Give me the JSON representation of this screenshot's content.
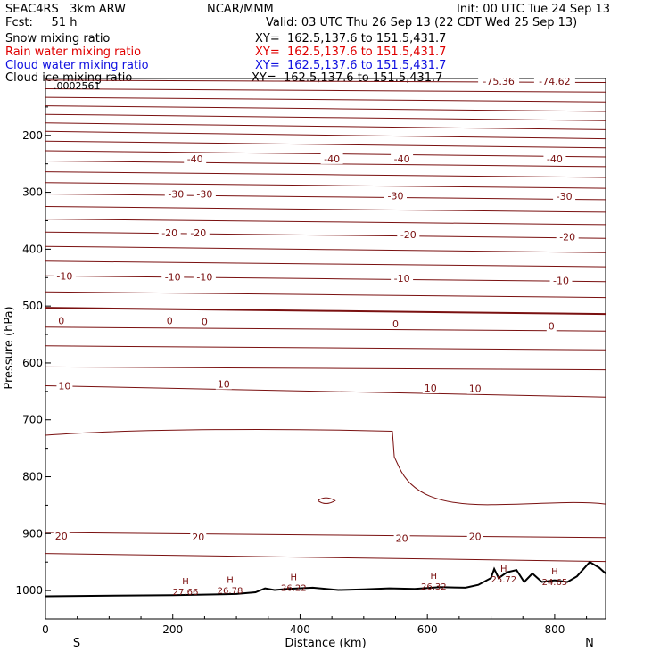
{
  "header": {
    "project": "SEAC4RS   3km ARW",
    "org": "NCAR/MMM",
    "init": "Init: 00 UTC Tue 24 Sep 13",
    "fcst": "Fcst:     51 h",
    "valid": "Valid: 03 UTC Thu 26 Sep 13 (22 CDT Wed 25 Sep 13)",
    "fields": [
      {
        "name": "Snow mixing ratio",
        "xy": "XY=  162.5,137.6 to 151.5,431.7",
        "color": "#000000"
      },
      {
        "name": "Rain water mixing ratio",
        "xy": "XY=  162.5,137.6 to 151.5,431.7",
        "color": "#e00000"
      },
      {
        "name": "Cloud water mixing ratio",
        "xy": "XY=  162.5,137.6 to 151.5,431.7",
        "color": "#1010e0"
      },
      {
        "name": "Cloud ice mixing ratio",
        "xy": "XY=  162.5,137.6 to 151.5,431.7",
        "color": "#000000"
      }
    ]
  },
  "chart_data": {
    "type": "line",
    "xlabel": "Distance (km)",
    "ylabel": "Pressure (hPa)",
    "xlim": [
      0,
      880
    ],
    "ylim": [
      1050,
      100
    ],
    "x_ticks": [
      0,
      200,
      400,
      600,
      800
    ],
    "x_tick_labels": [
      "0",
      "200",
      "400",
      "600",
      "800"
    ],
    "y_ticks": [
      200,
      300,
      400,
      500,
      600,
      700,
      800,
      900,
      1000
    ],
    "y_tick_labels": [
      "200",
      "300",
      "400",
      "500",
      "600",
      "700",
      "800",
      "900",
      "1000"
    ],
    "left_end_label": "S",
    "right_end_label": "N",
    "top_text": ".0002561",
    "contour_color": "#7a1010",
    "isotherms": [
      {
        "p0": 103,
        "p1": 107
      },
      {
        "p0": 118,
        "p1": 124
      },
      {
        "p0": 133,
        "p1": 141
      },
      {
        "p0": 148,
        "p1": 158
      },
      {
        "p0": 163,
        "p1": 174
      },
      {
        "p0": 178,
        "p1": 190
      },
      {
        "p0": 193,
        "p1": 206
      },
      {
        "p0": 210,
        "p1": 222
      },
      {
        "p0": 227,
        "p1": 238
      },
      {
        "p0": 245,
        "p1": 255
      },
      {
        "p0": 264,
        "p1": 274
      },
      {
        "p0": 283,
        "p1": 293
      },
      {
        "p0": 303,
        "p1": 313
      },
      {
        "p0": 325,
        "p1": 335
      },
      {
        "p0": 347,
        "p1": 357
      },
      {
        "p0": 370,
        "p1": 381
      },
      {
        "p0": 395,
        "p1": 406
      },
      {
        "p0": 421,
        "p1": 431
      },
      {
        "p0": 447,
        "p1": 457
      },
      {
        "p0": 475,
        "p1": 485
      },
      {
        "p0": 503,
        "p1": 514,
        "bold": true
      },
      {
        "p0": 537,
        "p1": 544
      },
      {
        "p0": 570,
        "p1": 577
      },
      {
        "p0": 607,
        "p1": 612
      },
      {
        "p0": 640,
        "p1": 660
      },
      {
        "p0": 898,
        "p1": 907
      },
      {
        "p0": 935,
        "p1": 949
      }
    ],
    "contour_labels": [
      {
        "text": "-75.36",
        "x": 712,
        "p": 105
      },
      {
        "text": "-74.62",
        "x": 800,
        "p": 105
      },
      {
        "text": "-40",
        "x": 235,
        "p": 241
      },
      {
        "text": "-40",
        "x": 450,
        "p": 241
      },
      {
        "text": "-40",
        "x": 560,
        "p": 241
      },
      {
        "text": "-40",
        "x": 800,
        "p": 241
      },
      {
        "text": "-30",
        "x": 205,
        "p": 303
      },
      {
        "text": "-30",
        "x": 250,
        "p": 303
      },
      {
        "text": "-30",
        "x": 550,
        "p": 306
      },
      {
        "text": "-30",
        "x": 815,
        "p": 307
      },
      {
        "text": "-20",
        "x": 195,
        "p": 371
      },
      {
        "text": "-20",
        "x": 240,
        "p": 371
      },
      {
        "text": "-20",
        "x": 570,
        "p": 374
      },
      {
        "text": "-20",
        "x": 820,
        "p": 378
      },
      {
        "text": "-10",
        "x": 30,
        "p": 447
      },
      {
        "text": "-10",
        "x": 200,
        "p": 449
      },
      {
        "text": "-10",
        "x": 250,
        "p": 449
      },
      {
        "text": "-10",
        "x": 560,
        "p": 451
      },
      {
        "text": "-10",
        "x": 810,
        "p": 455
      },
      {
        "text": "0",
        "x": 25,
        "p": 526
      },
      {
        "text": "0",
        "x": 195,
        "p": 526
      },
      {
        "text": "0",
        "x": 250,
        "p": 527
      },
      {
        "text": "0",
        "x": 550,
        "p": 531
      },
      {
        "text": "0",
        "x": 795,
        "p": 535
      },
      {
        "text": "10",
        "x": 30,
        "p": 640
      },
      {
        "text": "10",
        "x": 280,
        "p": 637
      },
      {
        "text": "10",
        "x": 605,
        "p": 644
      },
      {
        "text": "10",
        "x": 675,
        "p": 645
      },
      {
        "text": "20",
        "x": 25,
        "p": 904
      },
      {
        "text": "20",
        "x": 240,
        "p": 906
      },
      {
        "text": "20",
        "x": 560,
        "p": 908
      },
      {
        "text": "20",
        "x": 675,
        "p": 905
      }
    ],
    "h_markers": [
      {
        "label": "H",
        "value": "27.66",
        "x": 220,
        "p": 995
      },
      {
        "label": "H",
        "value": "26.78",
        "x": 290,
        "p": 993
      },
      {
        "label": "H",
        "value": "26.22",
        "x": 390,
        "p": 988
      },
      {
        "label": "H",
        "value": "26.32",
        "x": 610,
        "p": 986
      },
      {
        "label": "H",
        "value": "25.72",
        "x": 720,
        "p": 973
      },
      {
        "label": "H",
        "value": "24.65",
        "x": 800,
        "p": 978
      }
    ],
    "terrain": [
      {
        "x": 0,
        "p": 1010
      },
      {
        "x": 200,
        "p": 1008
      },
      {
        "x": 300,
        "p": 1006
      },
      {
        "x": 330,
        "p": 1003
      },
      {
        "x": 345,
        "p": 996
      },
      {
        "x": 360,
        "p": 999
      },
      {
        "x": 380,
        "p": 997
      },
      {
        "x": 420,
        "p": 995
      },
      {
        "x": 460,
        "p": 999
      },
      {
        "x": 500,
        "p": 998
      },
      {
        "x": 540,
        "p": 996
      },
      {
        "x": 580,
        "p": 997
      },
      {
        "x": 620,
        "p": 994
      },
      {
        "x": 660,
        "p": 995
      },
      {
        "x": 680,
        "p": 990
      },
      {
        "x": 700,
        "p": 978
      },
      {
        "x": 705,
        "p": 962
      },
      {
        "x": 712,
        "p": 978
      },
      {
        "x": 725,
        "p": 968
      },
      {
        "x": 740,
        "p": 964
      },
      {
        "x": 752,
        "p": 985
      },
      {
        "x": 765,
        "p": 970
      },
      {
        "x": 780,
        "p": 985
      },
      {
        "x": 800,
        "p": 982
      },
      {
        "x": 820,
        "p": 985
      },
      {
        "x": 835,
        "p": 975
      },
      {
        "x": 855,
        "p": 950
      },
      {
        "x": 870,
        "p": 960
      },
      {
        "x": 880,
        "p": 970
      }
    ]
  }
}
